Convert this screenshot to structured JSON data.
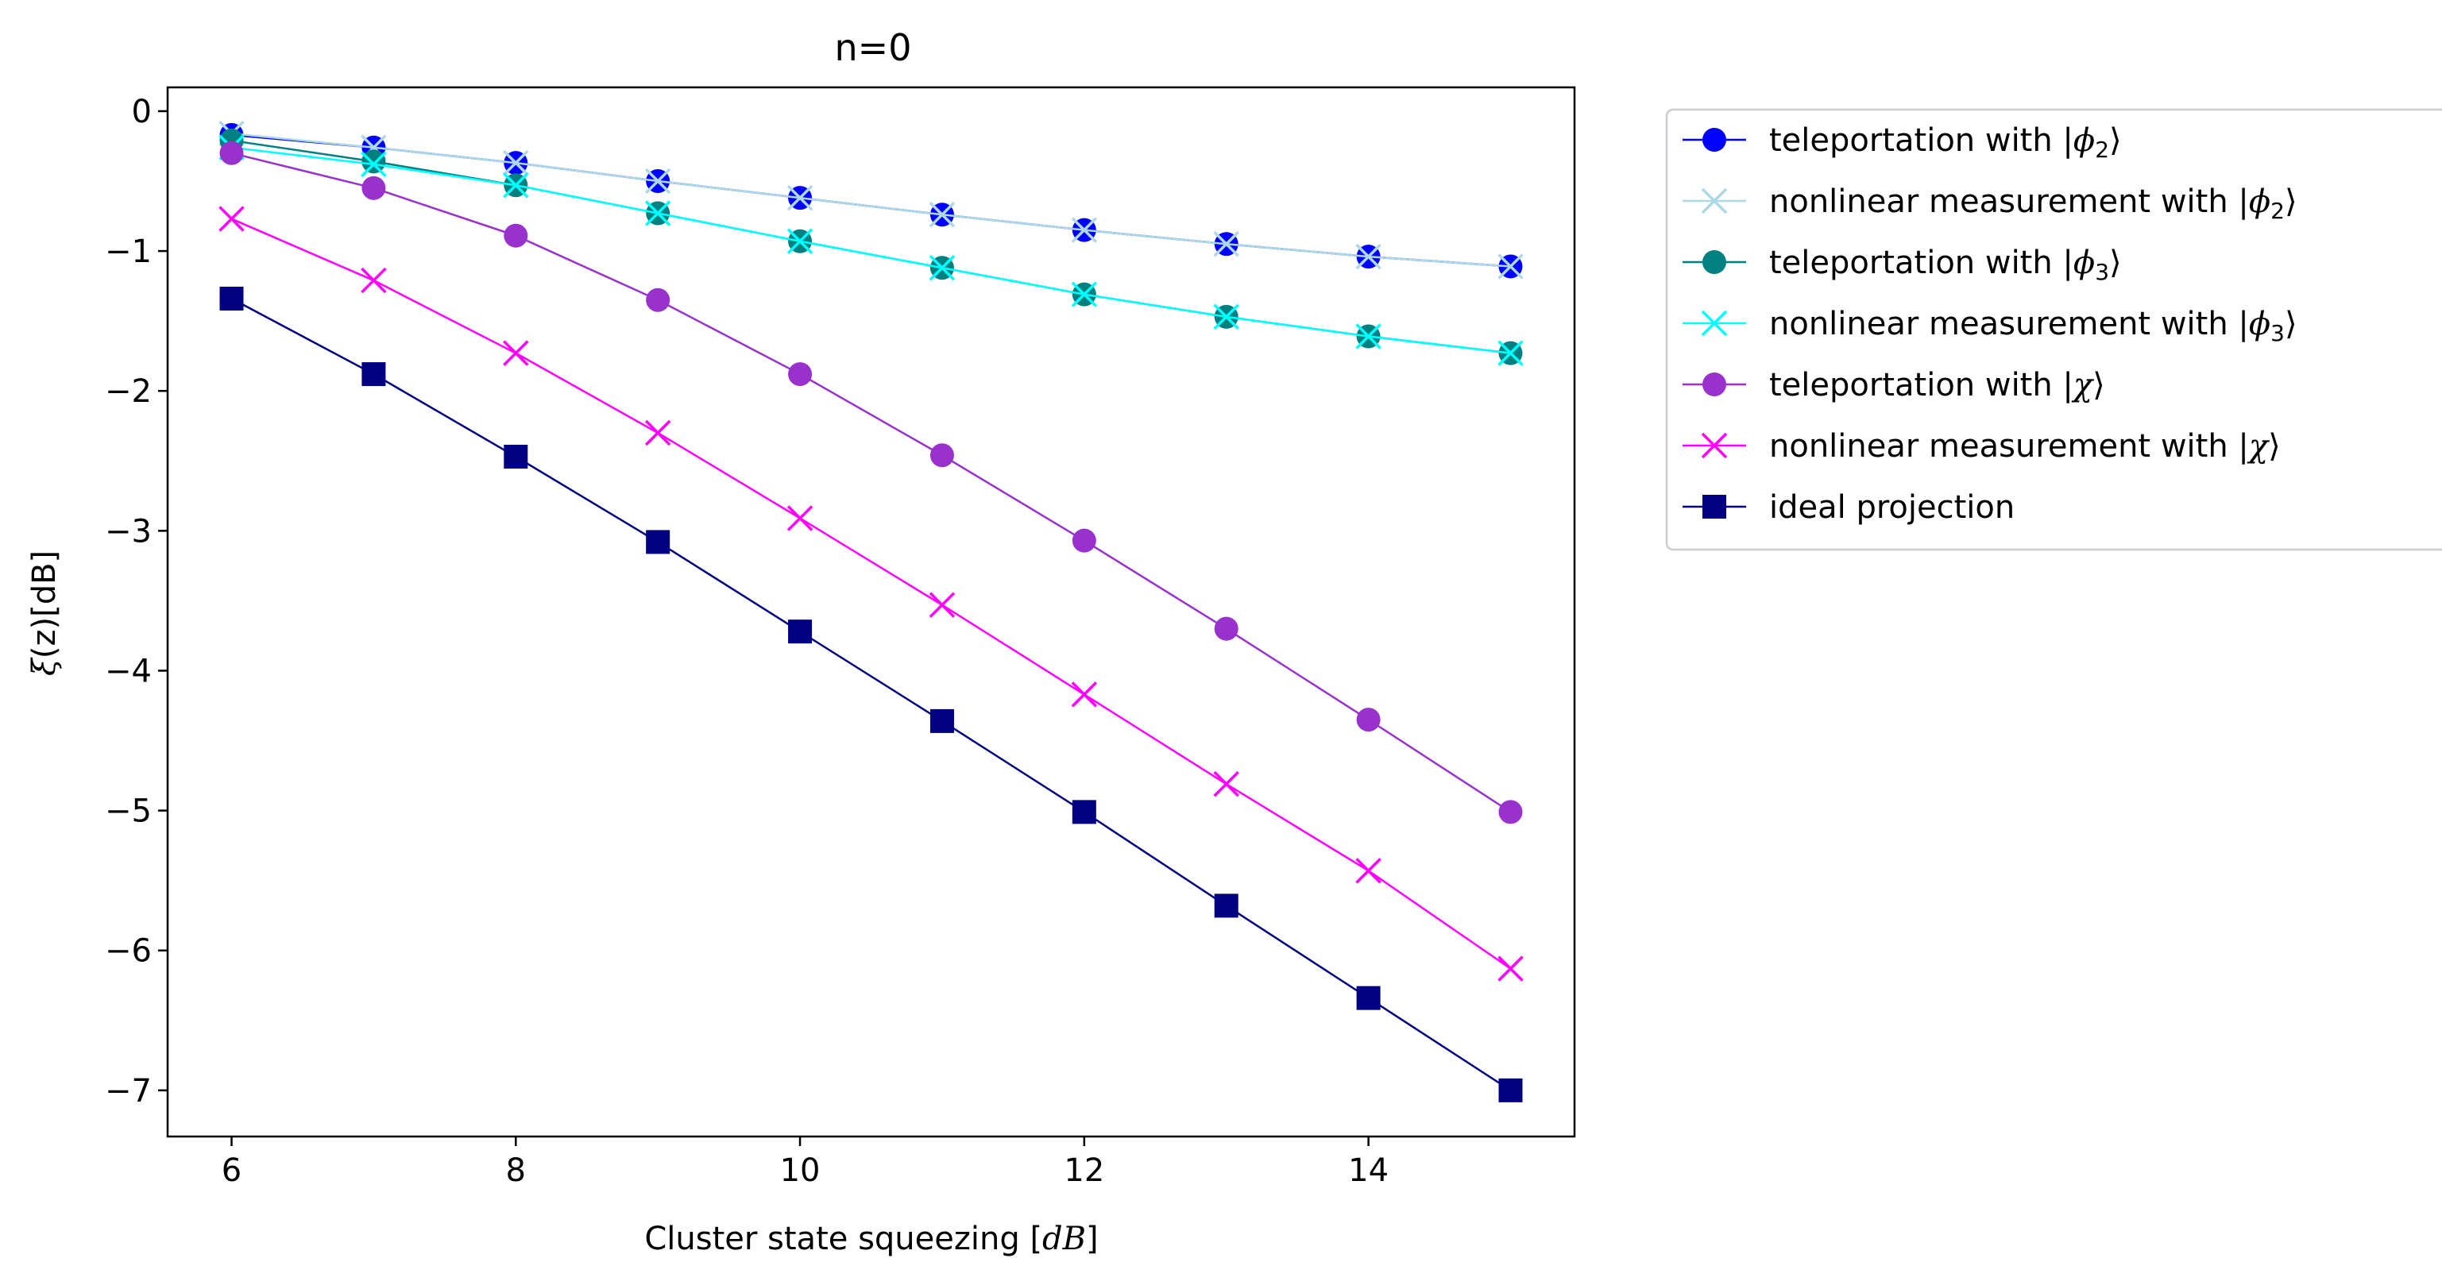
{
  "chart_data": {
    "type": "line",
    "title": "n=0",
    "xlabel_prefix": "Cluster state squeezing [",
    "xlabel_unit": "dB",
    "xlabel_suffix": "]",
    "ylabel_xi": "ξ",
    "ylabel_arg": "(z)[dB]",
    "xlim": [
      5.55,
      15.45
    ],
    "ylim": [
      -7.33,
      0.17
    ],
    "xticks": [
      6,
      8,
      10,
      12,
      14
    ],
    "xtick_labels": [
      "6",
      "8",
      "10",
      "12",
      "14"
    ],
    "yticks": [
      0,
      -1,
      -2,
      -3,
      -4,
      -5,
      -6,
      -7
    ],
    "ytick_labels": [
      "0",
      "−1",
      "−2",
      "−3",
      "−4",
      "−5",
      "−6",
      "−7"
    ],
    "legend_position": "outside-right-top",
    "x": [
      6,
      7,
      8,
      9,
      10,
      11,
      12,
      13,
      14,
      15
    ],
    "series": [
      {
        "name": "teleportation with |ϕ₂⟩",
        "label_prefix": "teleportation with |",
        "label_sym": "ϕ",
        "label_sub": "2",
        "label_end": "⟩",
        "color": "#0000ff",
        "marker": "circle",
        "values": [
          -0.17,
          -0.26,
          -0.37,
          -0.5,
          -0.62,
          -0.74,
          -0.85,
          -0.95,
          -1.04,
          -1.11
        ]
      },
      {
        "name": "nonlinear measurement with |ϕ₂⟩",
        "label_prefix": "nonlinear measurement with |",
        "label_sym": "ϕ",
        "label_sub": "2",
        "label_end": "⟩",
        "color": "#add8e6",
        "marker": "x",
        "values": [
          -0.16,
          -0.26,
          -0.37,
          -0.5,
          -0.62,
          -0.74,
          -0.85,
          -0.95,
          -1.04,
          -1.11
        ]
      },
      {
        "name": "teleportation with |ϕ₃⟩",
        "label_prefix": "teleportation with |",
        "label_sym": "ϕ",
        "label_sub": "3",
        "label_end": "⟩",
        "color": "#008080",
        "marker": "circle",
        "values": [
          -0.21,
          -0.36,
          -0.53,
          -0.73,
          -0.93,
          -1.12,
          -1.31,
          -1.47,
          -1.61,
          -1.73
        ]
      },
      {
        "name": "nonlinear measurement with |ϕ₃⟩",
        "label_prefix": "nonlinear measurement with |",
        "label_sym": "ϕ",
        "label_sub": "3",
        "label_end": "⟩",
        "color": "#00ffff",
        "marker": "x",
        "values": [
          -0.26,
          -0.38,
          -0.53,
          -0.73,
          -0.93,
          -1.12,
          -1.31,
          -1.47,
          -1.61,
          -1.73
        ]
      },
      {
        "name": "teleportation with |χ⟩",
        "label_prefix": "teleportation with |",
        "label_sym": "χ",
        "label_sub": "",
        "label_end": "⟩",
        "color": "#9932cc",
        "marker": "circle",
        "values": [
          -0.3,
          -0.55,
          -0.89,
          -1.35,
          -1.88,
          -2.46,
          -3.07,
          -3.7,
          -4.35,
          -5.01
        ]
      },
      {
        "name": "nonlinear measurement with |χ⟩",
        "label_prefix": "nonlinear measurement with |",
        "label_sym": "χ",
        "label_sub": "",
        "label_end": "⟩",
        "color": "#ff00ff",
        "marker": "x",
        "values": [
          -0.77,
          -1.21,
          -1.73,
          -2.3,
          -2.91,
          -3.53,
          -4.17,
          -4.81,
          -5.43,
          -6.13
        ]
      },
      {
        "name": "ideal projection",
        "label_prefix": "ideal projection",
        "label_sym": "",
        "label_sub": "",
        "label_end": "",
        "color": "#000080",
        "marker": "square",
        "values": [
          -1.34,
          -1.88,
          -2.47,
          -3.08,
          -3.72,
          -4.36,
          -5.01,
          -5.68,
          -6.34,
          -7.0
        ]
      }
    ]
  }
}
